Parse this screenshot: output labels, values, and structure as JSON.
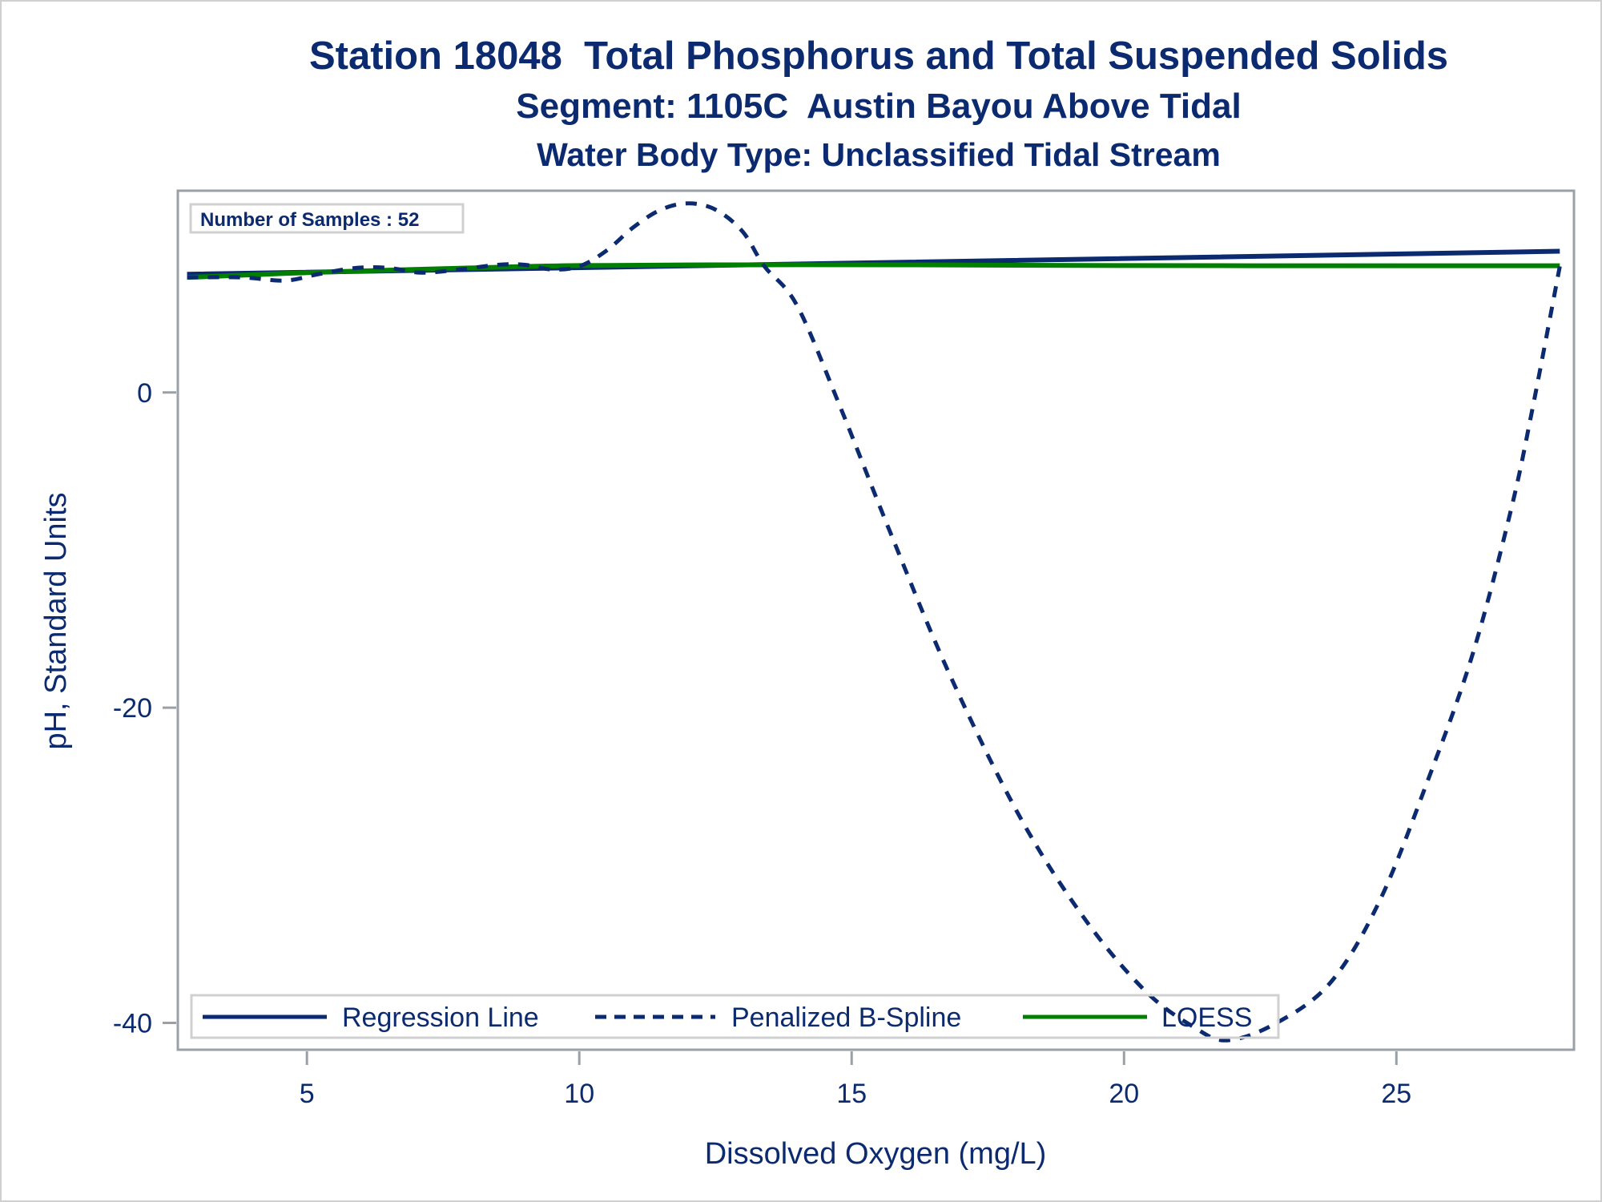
{
  "chart_data": {
    "type": "line",
    "title": "Station 18048  Total Phosphorus and Total Suspended Solids",
    "subtitle": "Segment: 1105C  Austin Bayou Above Tidal",
    "subtitle2": "Water Body Type: Unclassified Tidal Stream",
    "xlabel": "Dissolved Oxygen (mg/L)",
    "ylabel": "pH, Standard Units",
    "xlim": [
      2.63,
      28.26
    ],
    "ylim": [
      -41.7,
      12.8
    ],
    "xticks": [
      5,
      10,
      15,
      20,
      25
    ],
    "yticks": [
      0,
      -20,
      -40
    ],
    "grid": false,
    "inset": "Number of Samples : 52",
    "legend_position": "bottom-inside",
    "series": [
      {
        "name": "Regression Line",
        "color": "#0b2a6f",
        "style": "solid",
        "x": [
          2.8,
          28.0
        ],
        "y": [
          7.5,
          8.96
        ]
      },
      {
        "name": "Penalized B-Spline",
        "color": "#0b2a6f",
        "style": "dashed",
        "x": [
          2.8,
          3.8,
          4.6,
          5.2,
          5.9,
          6.5,
          7.1,
          7.8,
          8.5,
          9.0,
          9.5,
          10.0,
          10.5,
          11.0,
          11.5,
          12.0,
          12.5,
          13.0,
          13.4,
          14.0,
          14.8,
          15.7,
          16.8,
          18.1,
          19.3,
          20.4,
          21.3,
          21.9,
          22.8,
          23.8,
          24.7,
          25.6,
          26.4,
          27.1,
          27.5,
          28.0
        ],
        "y": [
          7.3,
          7.3,
          7.1,
          7.5,
          7.9,
          7.9,
          7.6,
          7.8,
          8.1,
          8.1,
          7.8,
          8.0,
          9.0,
          10.5,
          11.6,
          12.0,
          11.6,
          10.2,
          8.0,
          5.5,
          -1.0,
          -8.8,
          -17.9,
          -27.0,
          -33.5,
          -38.0,
          -40.3,
          -41.1,
          -40.0,
          -37.4,
          -32.2,
          -24.4,
          -16.6,
          -7.5,
          -1.0,
          8.0
        ]
      },
      {
        "name": "LOESS",
        "color": "#007f00",
        "style": "solid",
        "x": [
          2.8,
          5.0,
          8.0,
          10.0,
          13.0,
          16.0,
          20.0,
          24.0,
          28.0
        ],
        "y": [
          7.3,
          7.6,
          7.9,
          8.05,
          8.1,
          8.1,
          8.05,
          8.04,
          8.04
        ]
      }
    ]
  }
}
